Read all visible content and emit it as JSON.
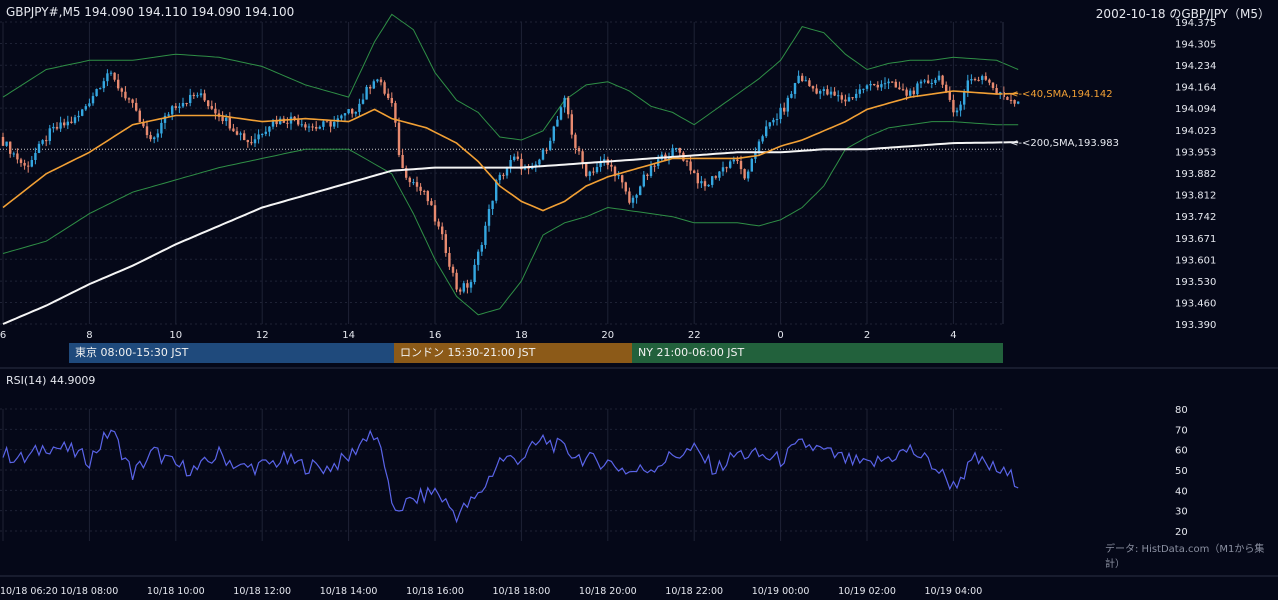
{
  "header": {
    "symbol_ohlc": "GBPJPY#,M5 194.090 194.110 194.090 194.100",
    "title": "2002-10-18 のGBP/JPY（M5）"
  },
  "colors": {
    "background": "#050818",
    "grid": "#1e2235",
    "bull": "#35a7e0",
    "bear": "#e88a70",
    "sma40": "#f2a035",
    "sma200": "#f5f5f5",
    "bollinger": "#2f8f46",
    "rsi": "#5a64e8"
  },
  "price_axis": {
    "ticks": [
      "194.375",
      "194.305",
      "194.234",
      "194.164",
      "194.094",
      "194.023",
      "193.953",
      "193.882",
      "193.812",
      "193.742",
      "193.671",
      "193.601",
      "193.530",
      "193.460",
      "193.390"
    ]
  },
  "indicator_labels": {
    "sma40": "<-<40,SMA,194.142",
    "sma200": "<-<200,SMA,193.983"
  },
  "hour_axis": [
    "6",
    "8",
    "10",
    "12",
    "14",
    "16",
    "18",
    "20",
    "22",
    "0",
    "2",
    "4"
  ],
  "sessions": [
    {
      "label": "東京 08:00-15:30 JST",
      "color": "#1f4a7c"
    },
    {
      "label": "ロンドン 15:30-21:00 JST",
      "color": "#8c5a18"
    },
    {
      "label": "NY 21:00-06:00 JST",
      "color": "#22613c"
    }
  ],
  "rsi": {
    "title": "RSI(14) 44.9009",
    "ticks": [
      "80",
      "70",
      "60",
      "50",
      "40",
      "30",
      "20"
    ]
  },
  "credit": "データ: HistData.com（M1から集計）",
  "time_axis": [
    "10/18 06:20",
    "10/18 08:00",
    "10/18 10:00",
    "10/18 12:00",
    "10/18 14:00",
    "10/18 16:00",
    "10/18 18:00",
    "10/18 20:00",
    "10/18 22:00",
    "10/19 00:00",
    "10/19 02:00",
    "10/19 04:00"
  ],
  "chart_data": {
    "type": "candlestick",
    "title": "2002-10-18 のGBP/JPY（M5）",
    "timeframe": "M5",
    "ylim": [
      193.39,
      194.375
    ],
    "x_hours": {
      "start": 6.0,
      "end": 5.5
    },
    "price_keypoints": [
      [
        6.0,
        194.0
      ],
      [
        6.6,
        193.9
      ],
      [
        7.2,
        194.02
      ],
      [
        7.8,
        194.06
      ],
      [
        8.5,
        194.21
      ],
      [
        9.0,
        194.12
      ],
      [
        9.5,
        193.98
      ],
      [
        10.0,
        194.1
      ],
      [
        10.6,
        194.14
      ],
      [
        11.2,
        194.06
      ],
      [
        11.8,
        193.98
      ],
      [
        12.3,
        194.05
      ],
      [
        12.8,
        194.06
      ],
      [
        13.3,
        194.03
      ],
      [
        13.8,
        194.05
      ],
      [
        14.3,
        194.1
      ],
      [
        14.7,
        194.2
      ],
      [
        15.1,
        194.1
      ],
      [
        15.3,
        193.9
      ],
      [
        15.6,
        193.85
      ],
      [
        15.9,
        193.8
      ],
      [
        16.3,
        193.65
      ],
      [
        16.6,
        193.5
      ],
      [
        16.9,
        193.52
      ],
      [
        17.2,
        193.68
      ],
      [
        17.5,
        193.85
      ],
      [
        17.9,
        193.93
      ],
      [
        18.3,
        193.88
      ],
      [
        18.6,
        193.95
      ],
      [
        18.9,
        194.05
      ],
      [
        19.1,
        194.12
      ],
      [
        19.3,
        193.98
      ],
      [
        19.6,
        193.88
      ],
      [
        20.0,
        193.92
      ],
      [
        20.3,
        193.88
      ],
      [
        20.6,
        193.78
      ],
      [
        20.9,
        193.86
      ],
      [
        21.3,
        193.93
      ],
      [
        21.7,
        193.96
      ],
      [
        22.0,
        193.9
      ],
      [
        22.3,
        193.83
      ],
      [
        22.6,
        193.88
      ],
      [
        23.0,
        193.93
      ],
      [
        23.3,
        193.86
      ],
      [
        23.6,
        194.0
      ],
      [
        23.9,
        194.05
      ],
      [
        24.2,
        194.1
      ],
      [
        24.5,
        194.2
      ],
      [
        24.8,
        194.16
      ],
      [
        25.2,
        194.14
      ],
      [
        25.6,
        194.12
      ],
      [
        26.0,
        194.16
      ],
      [
        26.5,
        194.18
      ],
      [
        27.0,
        194.14
      ],
      [
        27.5,
        194.18
      ],
      [
        27.8,
        194.2
      ],
      [
        28.1,
        194.06
      ],
      [
        28.4,
        194.18
      ],
      [
        28.8,
        194.2
      ],
      [
        29.1,
        194.14
      ],
      [
        29.5,
        194.12
      ]
    ],
    "sma40_keypoints": [
      [
        6.0,
        193.77
      ],
      [
        7.0,
        193.88
      ],
      [
        8.0,
        193.95
      ],
      [
        9.0,
        194.04
      ],
      [
        10.0,
        194.07
      ],
      [
        11.0,
        194.07
      ],
      [
        12.0,
        194.05
      ],
      [
        13.0,
        194.06
      ],
      [
        14.0,
        194.05
      ],
      [
        14.6,
        194.09
      ],
      [
        15.0,
        194.06
      ],
      [
        15.8,
        194.03
      ],
      [
        16.5,
        193.98
      ],
      [
        17.0,
        193.92
      ],
      [
        17.5,
        193.84
      ],
      [
        18.0,
        193.79
      ],
      [
        18.5,
        193.76
      ],
      [
        19.0,
        193.79
      ],
      [
        19.5,
        193.84
      ],
      [
        20.0,
        193.87
      ],
      [
        20.5,
        193.89
      ],
      [
        21.0,
        193.91
      ],
      [
        21.5,
        193.93
      ],
      [
        22.0,
        193.93
      ],
      [
        22.5,
        193.93
      ],
      [
        23.0,
        193.93
      ],
      [
        23.5,
        193.94
      ],
      [
        24.0,
        193.97
      ],
      [
        24.5,
        193.99
      ],
      [
        25.0,
        194.02
      ],
      [
        25.5,
        194.05
      ],
      [
        26.0,
        194.09
      ],
      [
        26.5,
        194.11
      ],
      [
        27.0,
        194.13
      ],
      [
        27.5,
        194.14
      ],
      [
        28.0,
        194.15
      ],
      [
        29.0,
        194.14
      ],
      [
        29.5,
        194.142
      ]
    ],
    "sma200_keypoints": [
      [
        6.0,
        193.39
      ],
      [
        7.0,
        193.45
      ],
      [
        8.0,
        193.52
      ],
      [
        9.0,
        193.58
      ],
      [
        10.0,
        193.65
      ],
      [
        11.0,
        193.71
      ],
      [
        12.0,
        193.77
      ],
      [
        13.0,
        193.81
      ],
      [
        14.0,
        193.85
      ],
      [
        15.0,
        193.89
      ],
      [
        16.0,
        193.9
      ],
      [
        17.0,
        193.9
      ],
      [
        18.0,
        193.9
      ],
      [
        19.0,
        193.91
      ],
      [
        20.0,
        193.92
      ],
      [
        21.0,
        193.93
      ],
      [
        22.0,
        193.94
      ],
      [
        23.0,
        193.95
      ],
      [
        24.0,
        193.95
      ],
      [
        25.0,
        193.96
      ],
      [
        26.0,
        193.96
      ],
      [
        27.0,
        193.97
      ],
      [
        28.0,
        193.98
      ],
      [
        29.5,
        193.983
      ]
    ],
    "bollinger_upper_keypoints": [
      [
        6.0,
        194.13
      ],
      [
        7.0,
        194.22
      ],
      [
        8.0,
        194.25
      ],
      [
        9.0,
        194.25
      ],
      [
        10.0,
        194.27
      ],
      [
        11.0,
        194.26
      ],
      [
        12.0,
        194.23
      ],
      [
        13.0,
        194.17
      ],
      [
        14.0,
        194.13
      ],
      [
        14.6,
        194.31
      ],
      [
        15.0,
        194.4
      ],
      [
        15.5,
        194.35
      ],
      [
        16.0,
        194.21
      ],
      [
        16.5,
        194.12
      ],
      [
        17.0,
        194.08
      ],
      [
        17.5,
        194.0
      ],
      [
        18.0,
        193.99
      ],
      [
        18.5,
        194.02
      ],
      [
        19.0,
        194.12
      ],
      [
        19.5,
        194.17
      ],
      [
        20.0,
        194.18
      ],
      [
        20.5,
        194.15
      ],
      [
        21.0,
        194.1
      ],
      [
        21.5,
        194.08
      ],
      [
        22.0,
        194.04
      ],
      [
        22.5,
        194.09
      ],
      [
        23.0,
        194.14
      ],
      [
        23.5,
        194.19
      ],
      [
        24.0,
        194.25
      ],
      [
        24.5,
        194.36
      ],
      [
        25.0,
        194.34
      ],
      [
        25.5,
        194.27
      ],
      [
        26.0,
        194.22
      ],
      [
        26.5,
        194.24
      ],
      [
        27.0,
        194.25
      ],
      [
        27.5,
        194.25
      ],
      [
        28.0,
        194.26
      ],
      [
        29.0,
        194.25
      ],
      [
        29.5,
        194.22
      ]
    ],
    "bollinger_lower_keypoints": [
      [
        6.0,
        193.62
      ],
      [
        7.0,
        193.66
      ],
      [
        8.0,
        193.75
      ],
      [
        9.0,
        193.82
      ],
      [
        10.0,
        193.86
      ],
      [
        11.0,
        193.9
      ],
      [
        12.0,
        193.93
      ],
      [
        13.0,
        193.96
      ],
      [
        14.0,
        193.96
      ],
      [
        15.0,
        193.88
      ],
      [
        15.5,
        193.75
      ],
      [
        16.0,
        193.6
      ],
      [
        16.5,
        193.48
      ],
      [
        17.0,
        193.42
      ],
      [
        17.5,
        193.44
      ],
      [
        18.0,
        193.53
      ],
      [
        18.5,
        193.68
      ],
      [
        19.0,
        193.72
      ],
      [
        19.5,
        193.74
      ],
      [
        20.0,
        193.77
      ],
      [
        20.5,
        193.76
      ],
      [
        21.0,
        193.75
      ],
      [
        21.5,
        193.74
      ],
      [
        22.0,
        193.72
      ],
      [
        22.5,
        193.72
      ],
      [
        23.0,
        193.72
      ],
      [
        23.5,
        193.71
      ],
      [
        24.0,
        193.73
      ],
      [
        24.5,
        193.77
      ],
      [
        25.0,
        193.84
      ],
      [
        25.5,
        193.96
      ],
      [
        26.0,
        194.0
      ],
      [
        26.5,
        194.03
      ],
      [
        27.0,
        194.04
      ],
      [
        27.5,
        194.05
      ],
      [
        28.0,
        194.05
      ],
      [
        29.0,
        194.04
      ],
      [
        29.5,
        194.04
      ]
    ],
    "rsi_keypoints": [
      [
        6.0,
        58
      ],
      [
        6.5,
        55
      ],
      [
        7.0,
        62
      ],
      [
        7.5,
        60
      ],
      [
        8.0,
        55
      ],
      [
        8.5,
        70
      ],
      [
        9.0,
        48
      ],
      [
        9.5,
        59
      ],
      [
        10.0,
        52
      ],
      [
        10.5,
        50
      ],
      [
        11.0,
        58
      ],
      [
        11.5,
        51
      ],
      [
        12.0,
        52
      ],
      [
        12.5,
        55
      ],
      [
        13.0,
        52
      ],
      [
        13.5,
        51
      ],
      [
        14.0,
        56
      ],
      [
        14.5,
        69
      ],
      [
        14.8,
        58
      ],
      [
        15.0,
        30
      ],
      [
        15.5,
        35
      ],
      [
        16.0,
        40
      ],
      [
        16.5,
        28
      ],
      [
        17.0,
        37
      ],
      [
        17.5,
        55
      ],
      [
        18.0,
        56
      ],
      [
        18.5,
        65
      ],
      [
        19.0,
        60
      ],
      [
        19.5,
        55
      ],
      [
        20.0,
        54
      ],
      [
        20.5,
        49
      ],
      [
        21.0,
        51
      ],
      [
        21.5,
        57
      ],
      [
        22.0,
        60
      ],
      [
        22.5,
        50
      ],
      [
        23.0,
        58
      ],
      [
        23.5,
        57
      ],
      [
        24.0,
        55
      ],
      [
        24.5,
        63
      ],
      [
        25.0,
        59
      ],
      [
        25.5,
        55
      ],
      [
        26.0,
        52
      ],
      [
        26.5,
        56
      ],
      [
        27.0,
        60
      ],
      [
        27.5,
        53
      ],
      [
        28.0,
        42
      ],
      [
        28.5,
        55
      ],
      [
        29.0,
        50
      ],
      [
        29.5,
        44.9009
      ]
    ],
    "yticks_price": [
      194.375,
      194.305,
      194.234,
      194.164,
      194.094,
      194.023,
      193.953,
      193.882,
      193.812,
      193.742,
      193.671,
      193.601,
      193.53,
      193.46,
      193.39
    ],
    "rsi_ylim": [
      20,
      80
    ],
    "reference_line": 193.96,
    "grid": true
  }
}
